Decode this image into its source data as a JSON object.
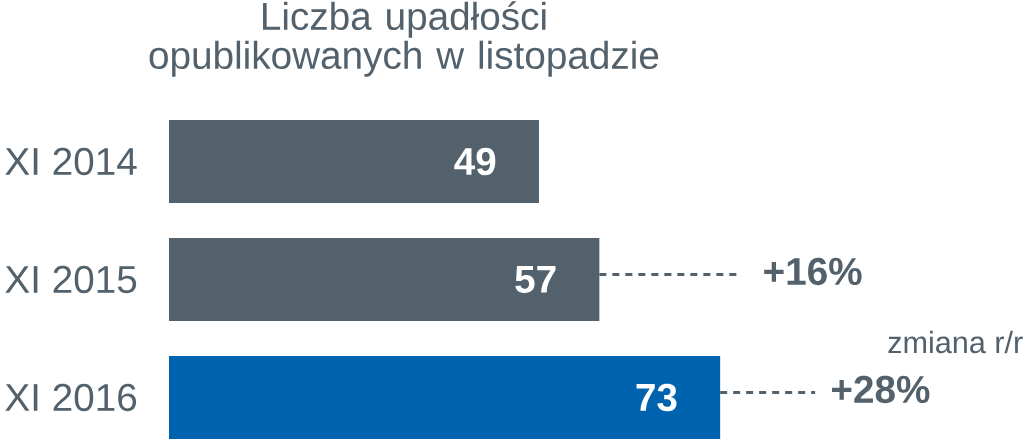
{
  "chart_data": {
    "type": "bar",
    "orientation": "horizontal",
    "title": "Liczba upadłości opublikowanych w listopadzie",
    "categories": [
      "XI 2014",
      "XI 2015",
      "XI 2016"
    ],
    "values": [
      49,
      57,
      73
    ],
    "colors": [
      "#52616c",
      "#52616c",
      "#0063b0"
    ],
    "tick_labels": "y",
    "data_labels": true,
    "annotations": [
      "+16%",
      "+28%",
      "zmiana r/r"
    ]
  }
}
